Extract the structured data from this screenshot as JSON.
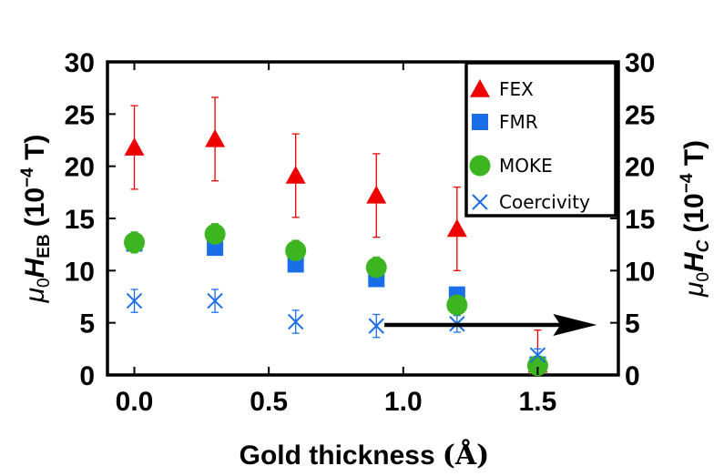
{
  "chart_data": {
    "type": "scatter",
    "xlabel": "Gold thickness",
    "xlabel_unit": "(Å)",
    "ylabel_left": {
      "mu": "μ",
      "zero": "0",
      "H": "H",
      "sub": "EB",
      "unit_open": "(10",
      "exp": "−4",
      "unit_close": " T)"
    },
    "ylabel_right": {
      "mu": "μ",
      "zero": "0",
      "H": "H",
      "sub": "C",
      "unit_open": "(10",
      "exp": "−4",
      "unit_close": " T)"
    },
    "xlim": [
      -0.1,
      1.8
    ],
    "ylim": [
      0,
      30
    ],
    "x_ticks": [
      "0.0",
      "0.5",
      "1.0",
      "1.5"
    ],
    "x_tick_values": [
      0.0,
      0.5,
      1.0,
      1.5
    ],
    "y_ticks": [
      "0",
      "5",
      "10",
      "15",
      "20",
      "25",
      "30"
    ],
    "y_tick_values": [
      0,
      5,
      10,
      15,
      20,
      25,
      30
    ],
    "series": [
      {
        "name": "FEX",
        "marker": "triangle",
        "color": "#ee0000",
        "x": [
          0.0,
          0.3,
          0.6,
          0.9,
          1.2,
          1.5
        ],
        "y": [
          21.8,
          22.6,
          19.1,
          17.2,
          14.0,
          1.0
        ],
        "err": [
          4.0,
          4.0,
          4.0,
          4.0,
          4.0,
          3.3
        ]
      },
      {
        "name": "FMR",
        "marker": "square",
        "color": "#1a6fe8",
        "x": [
          0.0,
          0.3,
          0.6,
          0.9,
          1.2,
          1.5
        ],
        "y": [
          12.6,
          12.2,
          10.6,
          9.2,
          7.7,
          1.0
        ],
        "err": [
          0.5,
          0.5,
          0.5,
          0.5,
          0.5,
          0.5
        ]
      },
      {
        "name": "MOKE",
        "marker": "circle",
        "color": "#3cb521",
        "x": [
          0.0,
          0.3,
          0.6,
          0.9,
          1.2,
          1.5
        ],
        "y": [
          12.7,
          13.5,
          11.9,
          10.3,
          6.7,
          0.9
        ],
        "err": [
          1.0,
          1.0,
          1.0,
          1.0,
          0.8,
          0.5
        ]
      },
      {
        "name": "Coercivity",
        "marker": "cross",
        "color": "#1a6fe8",
        "x": [
          0.0,
          0.3,
          0.6,
          0.9,
          1.2,
          1.5
        ],
        "y": [
          7.1,
          7.1,
          5.1,
          4.7,
          4.9,
          1.9
        ],
        "err": [
          1.1,
          1.1,
          1.1,
          1.1,
          0.8,
          0.6
        ]
      }
    ],
    "annotation": {
      "type": "arrow",
      "direction": "right",
      "from": [
        0.93,
        4.8
      ],
      "to": [
        1.72,
        4.8
      ]
    },
    "legend_position": "top-right"
  }
}
